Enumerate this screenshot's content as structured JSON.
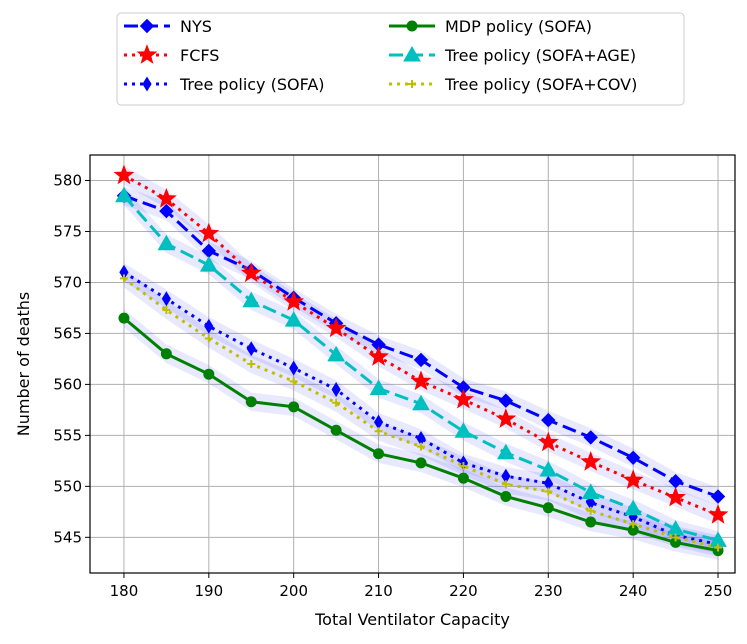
{
  "chart_data": {
    "type": "line",
    "xlabel": "Total Ventilator Capacity",
    "ylabel": "Number of deaths",
    "xlim": [
      176,
      252
    ],
    "ylim": [
      541.5,
      582.5
    ],
    "x": [
      180,
      185,
      190,
      195,
      200,
      205,
      210,
      215,
      220,
      225,
      230,
      235,
      240,
      245,
      250
    ],
    "xticks": [
      180,
      190,
      200,
      210,
      220,
      230,
      240,
      250
    ],
    "yticks": [
      545,
      550,
      555,
      560,
      565,
      570,
      575,
      580
    ],
    "grid": true,
    "legend_position": "top-center, two columns",
    "series": [
      {
        "name": "NYS",
        "color": "#0000ff",
        "linestyle": "dashed",
        "marker": "diamond",
        "values": [
          578.5,
          577.0,
          573.1,
          571.2,
          568.5,
          566.0,
          563.9,
          562.4,
          559.7,
          558.4,
          556.5,
          554.8,
          552.8,
          550.5,
          549.0
        ]
      },
      {
        "name": "FCFS",
        "color": "#ff0000",
        "linestyle": "dotted",
        "marker": "star",
        "values": [
          580.5,
          578.2,
          574.8,
          570.9,
          568.1,
          565.5,
          562.7,
          560.3,
          558.5,
          556.6,
          554.3,
          552.4,
          550.6,
          548.9,
          547.2
        ]
      },
      {
        "name": "Tree policy (SOFA)",
        "color": "#0000ff",
        "linestyle": "dotted",
        "marker": "thin-diamond",
        "values": [
          571.0,
          568.4,
          565.7,
          563.5,
          561.6,
          559.5,
          556.3,
          554.7,
          552.3,
          551.0,
          550.3,
          548.4,
          547.0,
          545.2,
          544.3
        ]
      },
      {
        "name": "MDP policy (SOFA)",
        "color": "#008000",
        "linestyle": "solid",
        "marker": "circle",
        "values": [
          566.5,
          563.0,
          561.0,
          558.3,
          557.8,
          555.5,
          553.2,
          552.3,
          550.8,
          549.0,
          547.9,
          546.5,
          545.7,
          544.5,
          543.7
        ]
      },
      {
        "name": "Tree policy (SOFA+AGE)",
        "color": "#00bfbf",
        "linestyle": "dashed",
        "marker": "triangle",
        "values": [
          578.5,
          573.8,
          571.7,
          568.2,
          566.3,
          562.9,
          559.6,
          558.1,
          555.4,
          553.3,
          551.6,
          549.4,
          547.8,
          545.8,
          544.7
        ]
      },
      {
        "name": "Tree policy (SOFA+COV)",
        "color": "#bfbf00",
        "linestyle": "dotted",
        "marker": "plus",
        "values": [
          570.4,
          567.3,
          564.5,
          562.0,
          560.3,
          558.2,
          555.4,
          553.9,
          552.0,
          550.2,
          549.5,
          547.6,
          546.3,
          545.0,
          544.0
        ]
      }
    ]
  }
}
